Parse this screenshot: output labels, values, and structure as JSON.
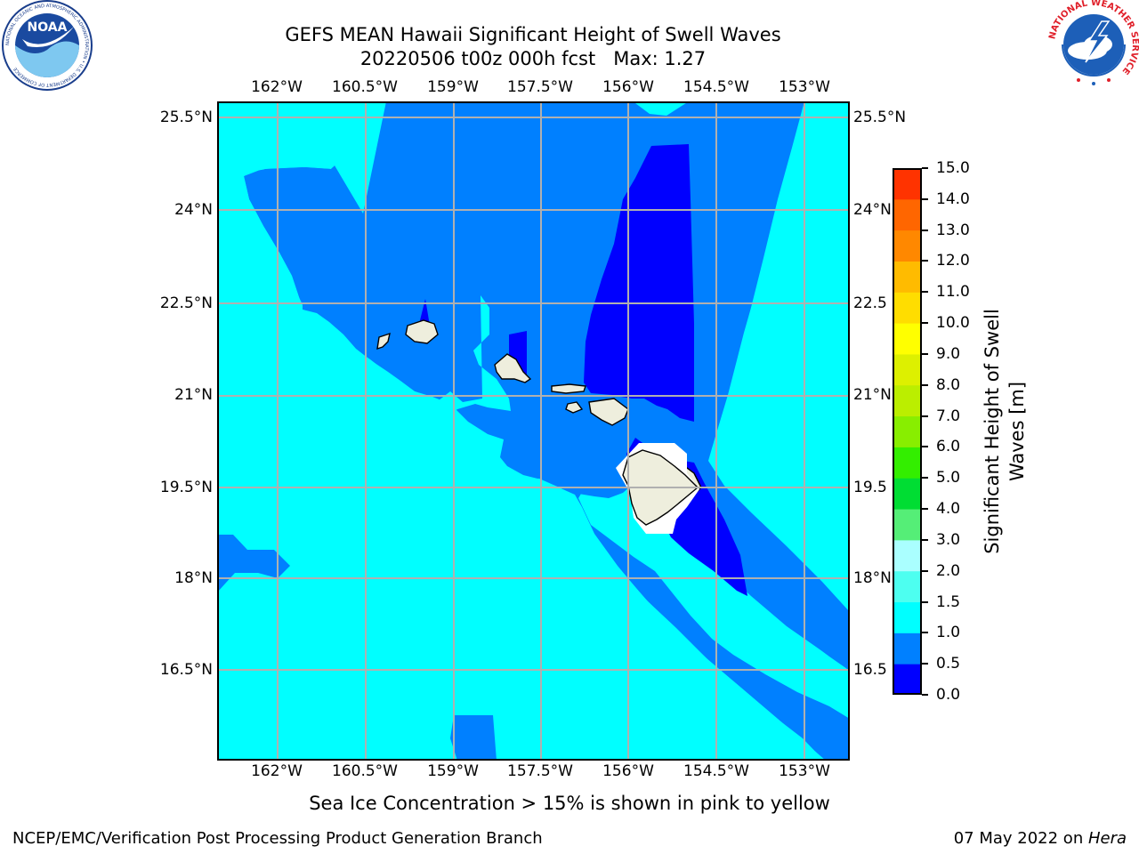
{
  "header": {
    "title_line1": "GEFS MEAN Hawaii Significant Height of Swell Waves",
    "title_line2": "20220506 t00z 000h fcst   Max: 1.27"
  },
  "logos": {
    "noaa_text": "NOAA",
    "noaa_ring_text": "NATIONAL OCEANIC AND ATMOSPHERIC ADMINISTRATION • U.S. DEPARTMENT OF COMMERCE",
    "nws_ring_text": "NATIONAL WEATHER SERVICE"
  },
  "map": {
    "lon_labels": [
      "162°W",
      "160.5°W",
      "159°W",
      "157.5°W",
      "156°W",
      "154.5°W",
      "153°W"
    ],
    "lat_labels": [
      "25.5°N",
      "24°N",
      "22.5°N",
      "21°N",
      "19.5°N",
      "18°N",
      "16.5°N"
    ],
    "lat_labels_right": [
      "25.5°N",
      "24°N",
      "22.5",
      "21°N",
      "19.5",
      "18°N",
      "16.5"
    ],
    "colors": {
      "level_0_0_5": "#0000ff",
      "level_0_5_1_0": "#0080ff",
      "level_1_0_1_5": "#00ffff",
      "land": "#eeeedd",
      "grid": "#b0b0b0"
    }
  },
  "colorbar": {
    "label_line1": "Significant Height of Swell",
    "label_line2": "Waves [m]",
    "ticks": [
      "0.0",
      "0.5",
      "1.0",
      "1.5",
      "2.0",
      "3.0",
      "4.0",
      "5.0",
      "6.0",
      "7.0",
      "8.0",
      "9.0",
      "10.0",
      "11.0",
      "12.0",
      "13.0",
      "14.0",
      "15.0"
    ],
    "bands": [
      "#0000ff",
      "#0080ff",
      "#00ffff",
      "#4dfff0",
      "#aaffff",
      "#55ee77",
      "#00dd33",
      "#33ee00",
      "#88ee00",
      "#bbee00",
      "#ddf000",
      "#ffff00",
      "#ffdd00",
      "#ffbb00",
      "#ff8800",
      "#ff6600",
      "#ff3300",
      "#ff0000"
    ]
  },
  "footer": {
    "note": "Sea Ice Concentration > 15% is shown in pink to yellow",
    "left": "NCEP/EMC/Verification Post Processing Product Generation Branch",
    "right_date": "07 May 2022 on ",
    "right_machine": "Hera"
  }
}
